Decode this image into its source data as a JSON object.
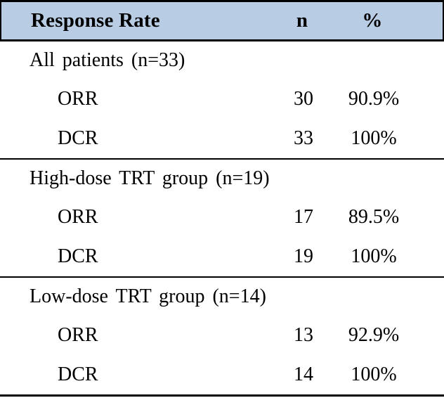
{
  "table": {
    "header": {
      "col1": "Response Rate",
      "col2": "n",
      "col3": "%"
    },
    "header_bg_color": "#b8cce4",
    "border_color": "#000000",
    "sections": [
      {
        "label": "All patients (n=33)",
        "rows": [
          {
            "name": "ORR",
            "n": "30",
            "pct": "90.9%"
          },
          {
            "name": "DCR",
            "n": "33",
            "pct": "100%"
          }
        ]
      },
      {
        "label": "High-dose TRT group (n=19)",
        "rows": [
          {
            "name": "ORR",
            "n": "17",
            "pct": "89.5%"
          },
          {
            "name": "DCR",
            "n": "19",
            "pct": "100%"
          }
        ]
      },
      {
        "label": "Low-dose TRT group (n=14)",
        "rows": [
          {
            "name": "ORR",
            "n": "13",
            "pct": "92.9%"
          },
          {
            "name": "DCR",
            "n": "14",
            "pct": "100%"
          }
        ]
      }
    ]
  },
  "chart_data": {
    "type": "table",
    "title": "Response Rate",
    "columns": [
      "Response Rate",
      "n",
      "%"
    ],
    "rows": [
      [
        "All patients (n=33)",
        "",
        ""
      ],
      [
        "ORR",
        30,
        "90.9%"
      ],
      [
        "DCR",
        33,
        "100%"
      ],
      [
        "High-dose TRT group (n=19)",
        "",
        ""
      ],
      [
        "ORR",
        17,
        "89.5%"
      ],
      [
        "DCR",
        19,
        "100%"
      ],
      [
        "Low-dose TRT group (n=14)",
        "",
        ""
      ],
      [
        "ORR",
        13,
        "92.9%"
      ],
      [
        "DCR",
        14,
        "100%"
      ]
    ]
  }
}
